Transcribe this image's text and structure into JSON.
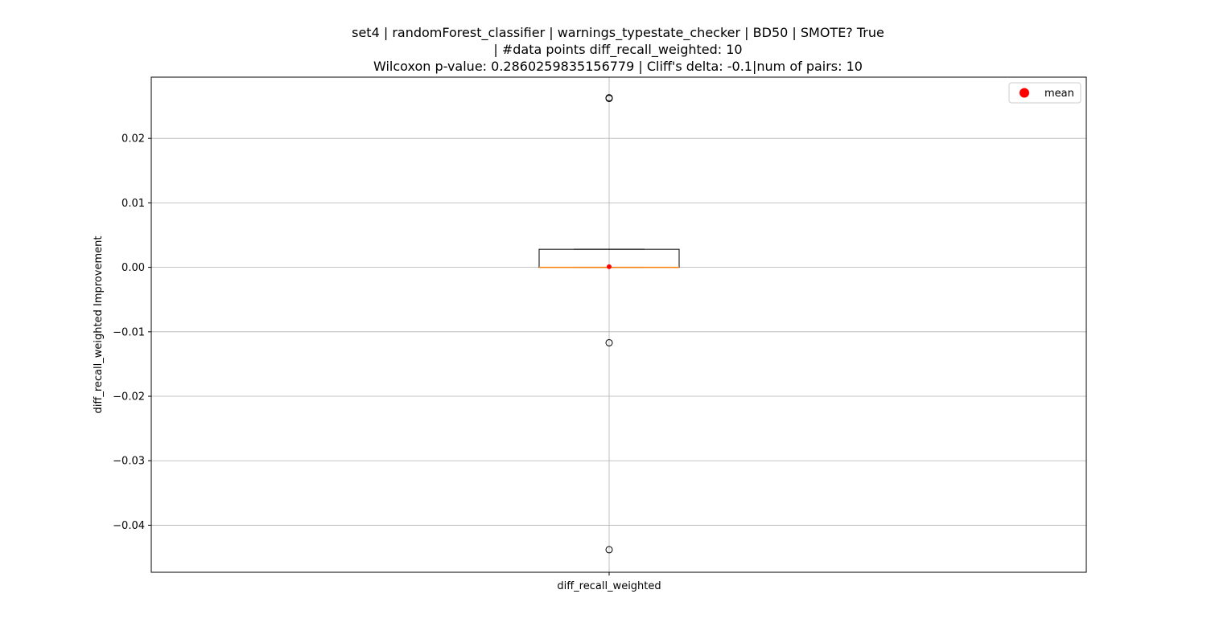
{
  "chart_data": {
    "type": "box",
    "title_lines": [
      "set4 | randomForest_classifier | warnings_typestate_checker | BD50 | SMOTE? True",
      "| #data points diff_recall_weighted: 10",
      "Wilcoxon p-value: 0.2860259835156779 | Cliff's delta: -0.1|num of pairs: 10"
    ],
    "ylabel": "diff_recall_weighted Improvement",
    "categories": [
      "diff_recall_weighted"
    ],
    "ylim": [
      -0.0473,
      0.0295
    ],
    "yticks": [
      -0.04,
      -0.03,
      -0.02,
      -0.01,
      0.0,
      0.01,
      0.02
    ],
    "ytick_labels": [
      "−0.04",
      "−0.03",
      "−0.02",
      "−0.01",
      "0.00",
      "0.01",
      "0.02"
    ],
    "grid": true,
    "legend": {
      "placement": "top-right",
      "entries": [
        {
          "label": "mean",
          "color": "#ff0000"
        }
      ]
    },
    "box": {
      "q1": 0.0,
      "median": 0.0,
      "q3": 0.0028,
      "whisker_low": 0.0,
      "whisker_high": 0.0028,
      "mean": 0.0001,
      "outliers": [
        0.0262,
        0.0263,
        -0.0117,
        -0.0438
      ]
    },
    "colors": {
      "box": "#000000",
      "median": "#ff7f0e",
      "mean": "#ff0000",
      "grid": "#b0b0b0"
    }
  }
}
